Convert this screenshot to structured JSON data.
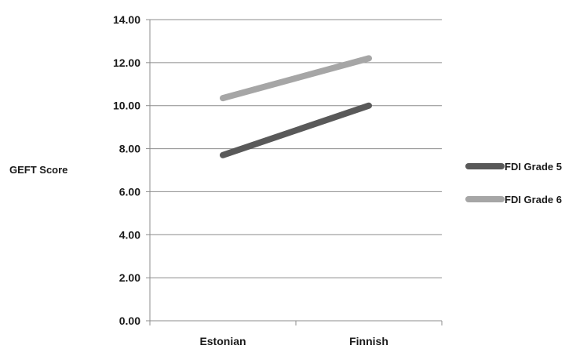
{
  "chart_data": {
    "type": "line",
    "title": "",
    "xlabel": "",
    "ylabel": "GEFT Score",
    "categories": [
      "Estonian",
      "Finnish"
    ],
    "ylim": [
      0,
      14
    ],
    "ytick_step": 2,
    "ytick_labels": [
      "0.00",
      "2.00",
      "4.00",
      "6.00",
      "8.00",
      "10.00",
      "12.00",
      "14.00"
    ],
    "grid": true,
    "legend_position": "right",
    "series": [
      {
        "name": "FDI Grade 5",
        "values": [
          7.7,
          10.0
        ],
        "color": "#595959"
      },
      {
        "name": "FDI Grade 6",
        "values": [
          10.35,
          12.2
        ],
        "color": "#a6a6a6"
      }
    ]
  }
}
